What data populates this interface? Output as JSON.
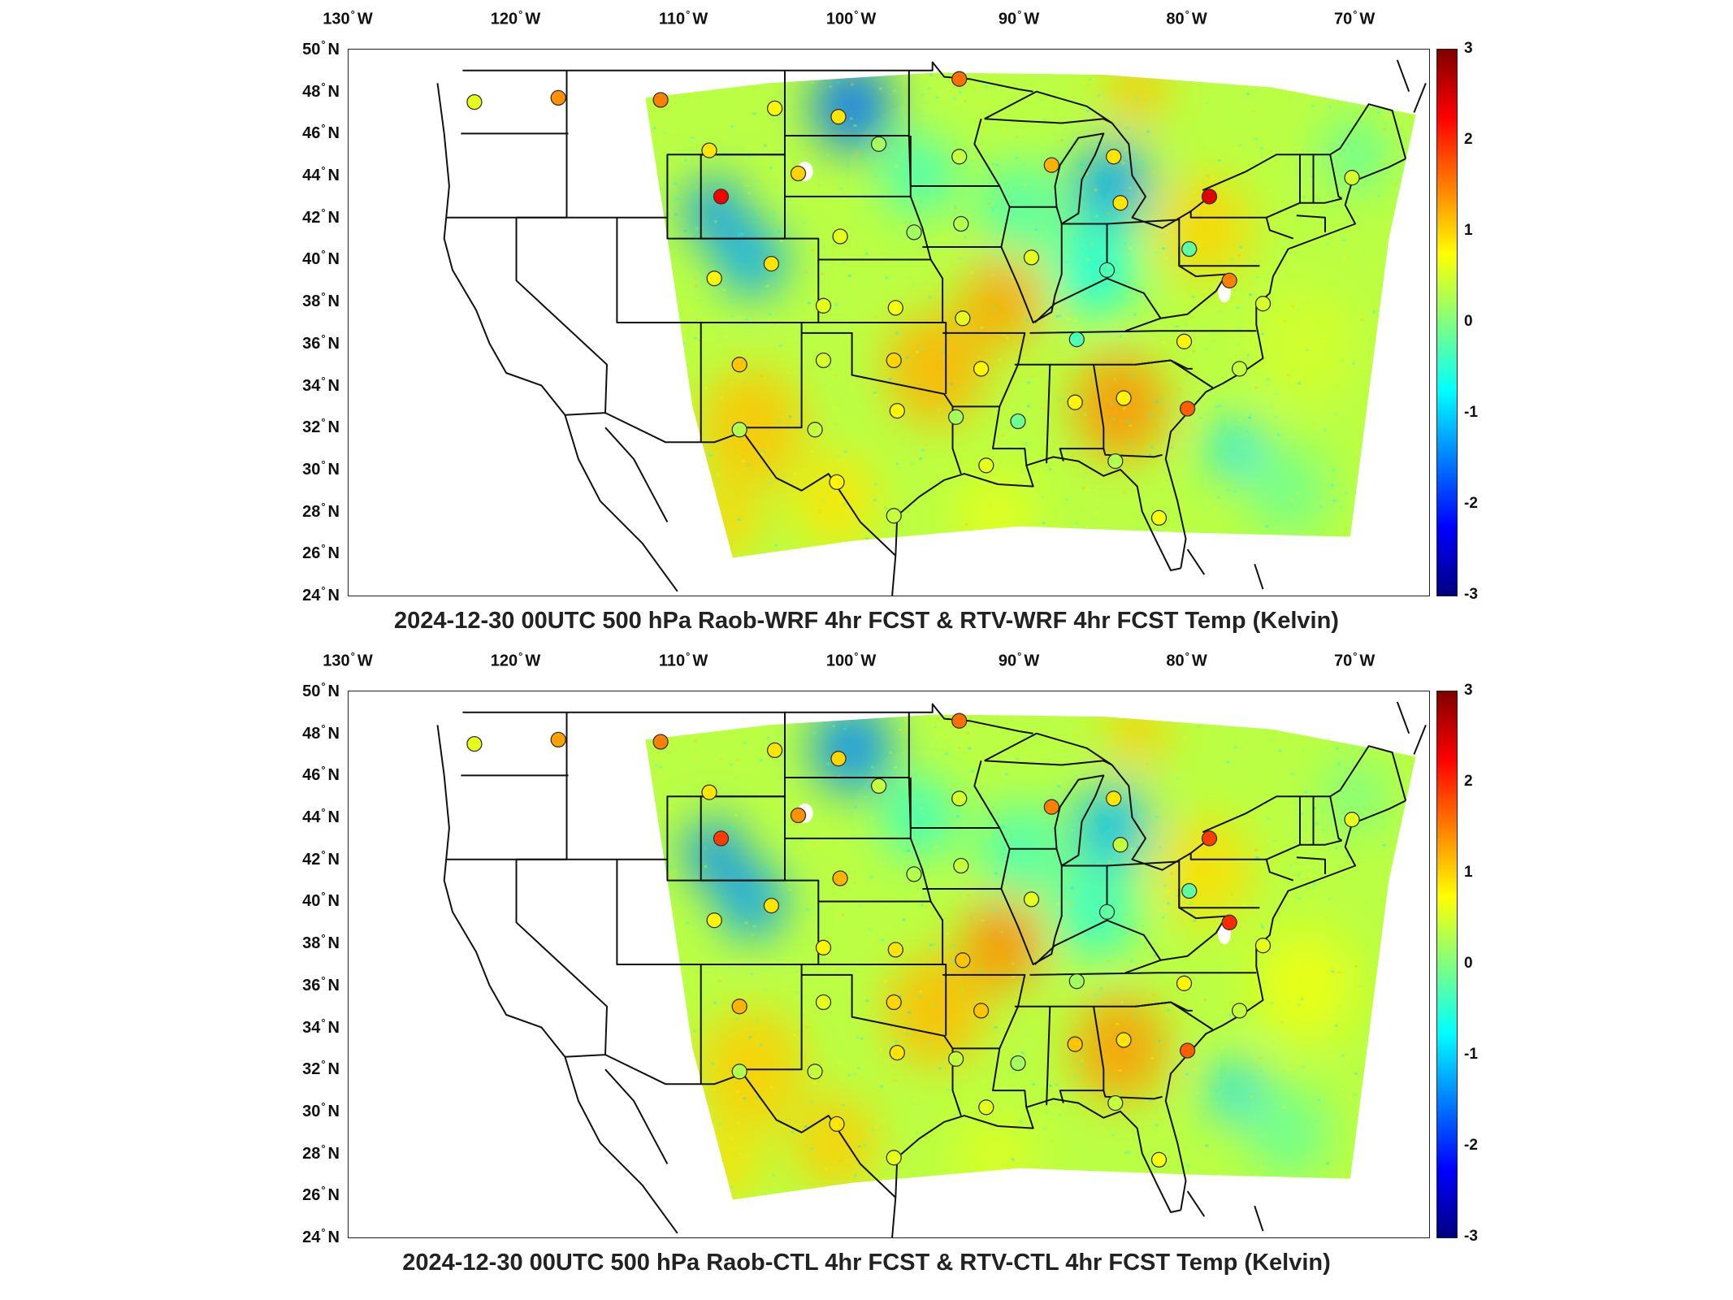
{
  "colorbar": {
    "ticks": [
      "3",
      "2",
      "1",
      "0",
      "-1",
      "-2",
      "-3"
    ],
    "min": -3,
    "max": 3
  },
  "axes": {
    "longitudes": [
      {
        "deg": "130",
        "hem": "W"
      },
      {
        "deg": "120",
        "hem": "W"
      },
      {
        "deg": "110",
        "hem": "W"
      },
      {
        "deg": "100",
        "hem": "W"
      },
      {
        "deg": "90",
        "hem": "W"
      },
      {
        "deg": "80",
        "hem": "W"
      },
      {
        "deg": "70",
        "hem": "W"
      }
    ],
    "latitudes": [
      {
        "deg": "50",
        "hem": "N"
      },
      {
        "deg": "48",
        "hem": "N"
      },
      {
        "deg": "46",
        "hem": "N"
      },
      {
        "deg": "44",
        "hem": "N"
      },
      {
        "deg": "42",
        "hem": "N"
      },
      {
        "deg": "40",
        "hem": "N"
      },
      {
        "deg": "38",
        "hem": "N"
      },
      {
        "deg": "36",
        "hem": "N"
      },
      {
        "deg": "34",
        "hem": "N"
      },
      {
        "deg": "32",
        "hem": "N"
      },
      {
        "deg": "30",
        "hem": "N"
      },
      {
        "deg": "28",
        "hem": "N"
      },
      {
        "deg": "26",
        "hem": "N"
      },
      {
        "deg": "24",
        "hem": "N"
      }
    ]
  },
  "colors": {
    "negative_strong": "#0000ff",
    "neutral": "#7fff7f",
    "positive_strong": "#ff0000",
    "border": "#111111"
  },
  "panels": [
    {
      "title": "2024-12-30 00UTC 500 hPa Raob-WRF 4hr FCST & RTV-WRF 4hr FCST Temp (Kelvin)",
      "stations": [
        {
          "lon": -122.5,
          "lat": 47.5,
          "value": 0.6
        },
        {
          "lon": -117.5,
          "lat": 47.7,
          "value": 1.4
        },
        {
          "lon": -111.4,
          "lat": 47.6,
          "value": 1.5
        },
        {
          "lon": -104.6,
          "lat": 47.2,
          "value": 0.8
        },
        {
          "lon": -100.8,
          "lat": 46.8,
          "value": 0.9
        },
        {
          "lon": -93.6,
          "lat": 48.6,
          "value": 1.6
        },
        {
          "lon": -108.5,
          "lat": 45.2,
          "value": 0.9
        },
        {
          "lon": -107.8,
          "lat": 43.0,
          "value": 2.3
        },
        {
          "lon": -103.2,
          "lat": 44.1,
          "value": 1.0
        },
        {
          "lon": -98.4,
          "lat": 45.5,
          "value": 0.2
        },
        {
          "lon": -93.6,
          "lat": 44.9,
          "value": 0.4
        },
        {
          "lon": -88.1,
          "lat": 44.5,
          "value": 1.2
        },
        {
          "lon": -84.4,
          "lat": 44.9,
          "value": 0.9
        },
        {
          "lon": -84.0,
          "lat": 42.7,
          "value": 0.9
        },
        {
          "lon": -78.7,
          "lat": 43.0,
          "value": 2.4
        },
        {
          "lon": -70.2,
          "lat": 43.9,
          "value": 0.5
        },
        {
          "lon": -100.7,
          "lat": 41.1,
          "value": 0.6
        },
        {
          "lon": -96.3,
          "lat": 41.3,
          "value": 0.2
        },
        {
          "lon": -93.5,
          "lat": 41.7,
          "value": 0.3
        },
        {
          "lon": -89.3,
          "lat": 40.1,
          "value": 0.6
        },
        {
          "lon": -84.8,
          "lat": 39.5,
          "value": -0.3
        },
        {
          "lon": -79.9,
          "lat": 40.5,
          "value": -0.2
        },
        {
          "lon": -77.5,
          "lat": 39.0,
          "value": 1.5
        },
        {
          "lon": -75.5,
          "lat": 37.9,
          "value": 0.5
        },
        {
          "lon": -108.2,
          "lat": 39.1,
          "value": 0.8
        },
        {
          "lon": -104.8,
          "lat": 39.8,
          "value": 0.9
        },
        {
          "lon": -101.7,
          "lat": 37.8,
          "value": 0.6
        },
        {
          "lon": -97.4,
          "lat": 37.7,
          "value": 0.7
        },
        {
          "lon": -93.4,
          "lat": 37.2,
          "value": 0.6
        },
        {
          "lon": -86.6,
          "lat": 36.2,
          "value": -0.3
        },
        {
          "lon": -80.2,
          "lat": 36.1,
          "value": 0.8
        },
        {
          "lon": -76.9,
          "lat": 34.8,
          "value": 0.4
        },
        {
          "lon": -106.7,
          "lat": 35.0,
          "value": 1.1
        },
        {
          "lon": -101.7,
          "lat": 35.2,
          "value": 0.5
        },
        {
          "lon": -97.5,
          "lat": 35.2,
          "value": 1.0
        },
        {
          "lon": -92.3,
          "lat": 34.8,
          "value": 0.8
        },
        {
          "lon": -86.7,
          "lat": 33.2,
          "value": 0.8
        },
        {
          "lon": -83.8,
          "lat": 33.4,
          "value": 0.8
        },
        {
          "lon": -80.0,
          "lat": 32.9,
          "value": 1.7
        },
        {
          "lon": -106.7,
          "lat": 31.9,
          "value": 0.3
        },
        {
          "lon": -102.2,
          "lat": 31.9,
          "value": 0.4
        },
        {
          "lon": -97.3,
          "lat": 32.8,
          "value": 0.8
        },
        {
          "lon": -93.8,
          "lat": 32.5,
          "value": 0.2
        },
        {
          "lon": -90.1,
          "lat": 32.3,
          "value": -0.1
        },
        {
          "lon": -84.3,
          "lat": 30.4,
          "value": 0.3
        },
        {
          "lon": -100.9,
          "lat": 29.4,
          "value": 0.8
        },
        {
          "lon": -97.5,
          "lat": 27.8,
          "value": 0.4
        },
        {
          "lon": -92.0,
          "lat": 30.2,
          "value": 0.6
        },
        {
          "lon": -81.7,
          "lat": 27.7,
          "value": 0.7
        }
      ]
    },
    {
      "title": "2024-12-30 00UTC 500 hPa Raob-CTL 4hr FCST & RTV-CTL 4hr FCST Temp (Kelvin)",
      "stations": [
        {
          "lon": -122.5,
          "lat": 47.5,
          "value": 0.6
        },
        {
          "lon": -117.5,
          "lat": 47.7,
          "value": 1.3
        },
        {
          "lon": -111.4,
          "lat": 47.6,
          "value": 1.5
        },
        {
          "lon": -104.6,
          "lat": 47.2,
          "value": 0.9
        },
        {
          "lon": -100.8,
          "lat": 46.8,
          "value": 1.0
        },
        {
          "lon": -93.6,
          "lat": 48.6,
          "value": 1.6
        },
        {
          "lon": -108.5,
          "lat": 45.2,
          "value": 0.9
        },
        {
          "lon": -107.8,
          "lat": 43.0,
          "value": 1.9
        },
        {
          "lon": -103.2,
          "lat": 44.1,
          "value": 1.4
        },
        {
          "lon": -98.4,
          "lat": 45.5,
          "value": 0.4
        },
        {
          "lon": -93.6,
          "lat": 44.9,
          "value": 0.5
        },
        {
          "lon": -88.1,
          "lat": 44.5,
          "value": 1.5
        },
        {
          "lon": -84.4,
          "lat": 44.9,
          "value": 0.9
        },
        {
          "lon": -84.0,
          "lat": 42.7,
          "value": 0.4
        },
        {
          "lon": -78.7,
          "lat": 43.0,
          "value": 1.9
        },
        {
          "lon": -70.2,
          "lat": 43.9,
          "value": 0.6
        },
        {
          "lon": -100.7,
          "lat": 41.1,
          "value": 1.2
        },
        {
          "lon": -96.3,
          "lat": 41.3,
          "value": 0.3
        },
        {
          "lon": -93.5,
          "lat": 41.7,
          "value": 0.4
        },
        {
          "lon": -89.3,
          "lat": 40.1,
          "value": 0.6
        },
        {
          "lon": -84.8,
          "lat": 39.5,
          "value": -0.2
        },
        {
          "lon": -79.9,
          "lat": 40.5,
          "value": -0.2
        },
        {
          "lon": -77.5,
          "lat": 39.0,
          "value": 2.0
        },
        {
          "lon": -75.5,
          "lat": 37.9,
          "value": 0.6
        },
        {
          "lon": -108.2,
          "lat": 39.1,
          "value": 0.8
        },
        {
          "lon": -104.8,
          "lat": 39.8,
          "value": 0.9
        },
        {
          "lon": -101.7,
          "lat": 37.8,
          "value": 0.8
        },
        {
          "lon": -97.4,
          "lat": 37.7,
          "value": 0.9
        },
        {
          "lon": -93.4,
          "lat": 37.2,
          "value": 1.1
        },
        {
          "lon": -86.6,
          "lat": 36.2,
          "value": 0.2
        },
        {
          "lon": -80.2,
          "lat": 36.1,
          "value": 0.8
        },
        {
          "lon": -76.9,
          "lat": 34.8,
          "value": 0.4
        },
        {
          "lon": -106.7,
          "lat": 35.0,
          "value": 1.2
        },
        {
          "lon": -101.7,
          "lat": 35.2,
          "value": 0.6
        },
        {
          "lon": -97.5,
          "lat": 35.2,
          "value": 1.0
        },
        {
          "lon": -92.3,
          "lat": 34.8,
          "value": 1.1
        },
        {
          "lon": -86.7,
          "lat": 33.2,
          "value": 1.1
        },
        {
          "lon": -83.8,
          "lat": 33.4,
          "value": 0.9
        },
        {
          "lon": -80.0,
          "lat": 32.9,
          "value": 1.7
        },
        {
          "lon": -106.7,
          "lat": 31.9,
          "value": 0.3
        },
        {
          "lon": -102.2,
          "lat": 31.9,
          "value": 0.4
        },
        {
          "lon": -97.3,
          "lat": 32.8,
          "value": 0.9
        },
        {
          "lon": -93.8,
          "lat": 32.5,
          "value": 0.4
        },
        {
          "lon": -90.1,
          "lat": 32.3,
          "value": 0.2
        },
        {
          "lon": -84.3,
          "lat": 30.4,
          "value": 0.4
        },
        {
          "lon": -100.9,
          "lat": 29.4,
          "value": 0.9
        },
        {
          "lon": -97.5,
          "lat": 27.8,
          "value": 0.6
        },
        {
          "lon": -92.0,
          "lat": 30.2,
          "value": 0.6
        },
        {
          "lon": -81.7,
          "lat": 27.7,
          "value": 0.7
        }
      ]
    }
  ]
}
